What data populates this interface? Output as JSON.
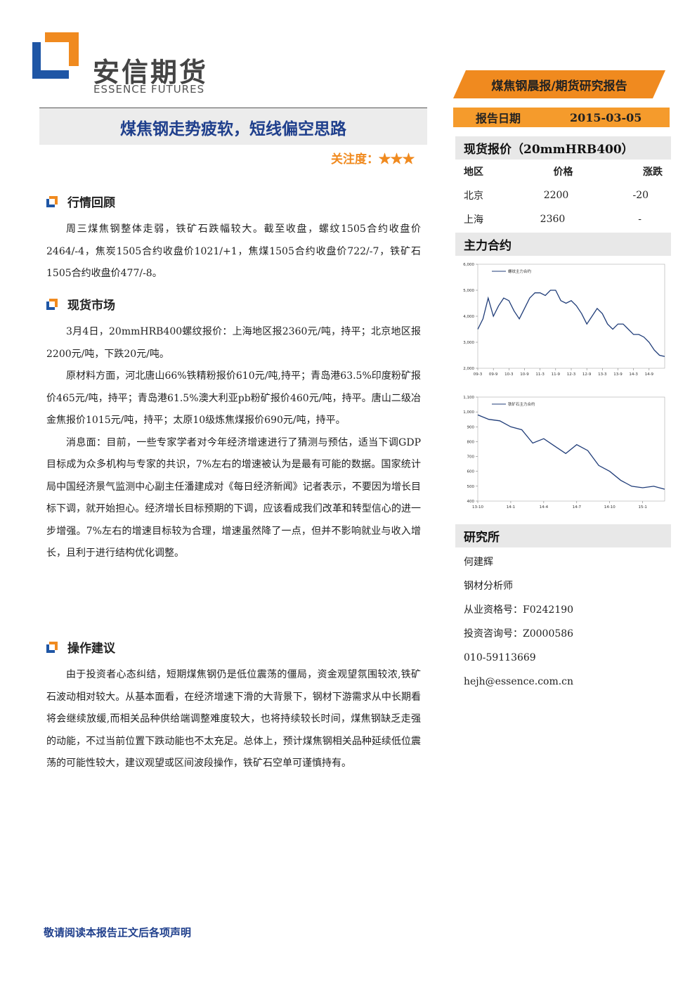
{
  "header": {
    "company": "安信期货",
    "company_en": "ESSENCE FUTURES",
    "report_type": "煤焦钢晨报/期货研究报告",
    "date_label": "报告日期",
    "date": "2015-03-05"
  },
  "title": "煤焦钢走势疲软，短线偏空思路",
  "attention": "关注度：★★★",
  "sections": [
    {
      "heading": "行情回顾",
      "paragraphs": [
        "周三煤焦钢整体走弱，铁矿石跌幅较大。截至收盘，螺纹1505合约收盘价2464/-4，焦炭1505合约收盘价1021/+1，焦煤1505合约收盘价722/-7，铁矿石1505合约收盘价477/-8。"
      ]
    },
    {
      "heading": "现货市场",
      "paragraphs": [
        "3月4日，20mmHRB400螺纹报价：上海地区报2360元/吨，持平；北京地区报2200元/吨，下跌20元/吨。",
        "原材料方面，河北唐山66%铁精粉报价610元/吨,持平；青岛港63.5%印度粉矿报价465元/吨，持平；青岛港61.5%澳大利亚pb粉矿报价460元/吨，持平。唐山二级冶金焦报价1015元/吨，持平；太原10级炼焦煤报价690元/吨，持平。",
        "消息面：目前，一些专家学者对今年经济增速进行了猜测与预估，适当下调GDP目标成为众多机构与专家的共识，7%左右的增速被认为是最有可能的数据。国家统计局中国经济景气监测中心副主任潘建成对《每日经济新闻》记者表示，不要因为增长目标下调，就开始担心。经济增长目标预期的下调，应该看成我们改革和转型信心的进一步增强。7%左右的增速目标较为合理，增速虽然降了一点，但并不影响就业与收入增长，且利于进行结构优化调整。"
      ]
    },
    {
      "heading": "操作建议",
      "paragraphs": [
        "由于投资者心态纠结，短期煤焦钢仍是低位震荡的僵局，资金观望氛围较浓,铁矿石波动相对较大。从基本面看，在经济增速下滑的大背景下，钢材下游需求从中长期看将会继续放缓,而相关品种供给端调整难度较大，也将持续较长时间，煤焦钢缺乏走强的动能，不过当前位置下跌动能也不太充足。总体上，预计煤焦钢相关品种延续低位震荡的可能性较大，建议观望或区间波段操作，铁矿石空单可谨慎持有。"
      ]
    }
  ],
  "spot": {
    "heading": "现货报价（20mmHRB400）",
    "columns": [
      "地区",
      "价格",
      "涨跌"
    ],
    "rows": [
      [
        "北京",
        2200,
        -20
      ],
      [
        "上海",
        2360,
        "-"
      ]
    ]
  },
  "contracts_heading": "主力合约",
  "chart_data": [
    {
      "type": "line",
      "categories": [
        "09-3",
        null,
        null,
        "09-9",
        null,
        null,
        "10-3",
        null,
        null,
        "10-9",
        null,
        null,
        "11-3",
        null,
        null,
        "11-9",
        null,
        null,
        "12-3",
        null,
        null,
        "12-9",
        null,
        null,
        "13-3",
        null,
        null,
        "13-9",
        null,
        null,
        "14-3",
        null,
        null,
        "14-9",
        null,
        null,
        null
      ],
      "series": [
        {
          "name": "螺纹主力合约",
          "color": "#1f3c78",
          "values": [
            3500,
            3900,
            4700,
            4000,
            4400,
            4700,
            4600,
            4200,
            3900,
            4300,
            4700,
            4900,
            4900,
            4800,
            5000,
            5000,
            4600,
            4500,
            4600,
            4400,
            4100,
            3700,
            4000,
            4300,
            4100,
            3700,
            3500,
            3700,
            3700,
            3500,
            3300,
            3300,
            3200,
            3000,
            2700,
            2500,
            2450
          ]
        }
      ],
      "ylim": [
        2000,
        6000
      ],
      "yticks": [
        {
          "value": 2000,
          "label": "2,000"
        },
        {
          "value": 3000,
          "label": "3,000"
        },
        {
          "value": 4000,
          "label": "4,000"
        },
        {
          "value": 5000,
          "label": "5,000"
        },
        {
          "value": 6000,
          "label": "6,000"
        }
      ]
    },
    {
      "type": "line",
      "categories": [
        "13-10",
        null,
        null,
        "14-1",
        null,
        null,
        "14-4",
        null,
        null,
        "14-7",
        null,
        null,
        "14-10",
        null,
        null,
        "15-1",
        null,
        null
      ],
      "series": [
        {
          "name": "铁矿石主力合约",
          "color": "#1f3c78",
          "values": [
            980,
            950,
            940,
            900,
            880,
            790,
            820,
            770,
            720,
            780,
            740,
            640,
            600,
            540,
            500,
            490,
            500,
            480
          ]
        }
      ],
      "ylim": [
        400,
        1100
      ],
      "yticks": [
        400,
        500,
        600,
        700,
        800,
        900,
        {
          "value": 1000,
          "label": "1,000"
        },
        {
          "value": 1100,
          "label": "1,100"
        }
      ]
    }
  ],
  "institute": {
    "heading": "研究所",
    "lines": [
      "何建辉",
      "钢材分析师",
      "从业资格号：F0242190",
      "投资咨询号：Z0000586",
      "010-59113669",
      "hejh@essence.com.cn"
    ]
  },
  "footer": "敬请阅读本报告正文后各项声明"
}
